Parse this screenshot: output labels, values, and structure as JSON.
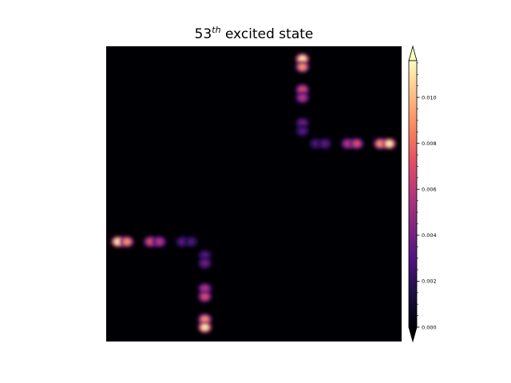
{
  "chart_data": {
    "type": "heatmap",
    "title": {
      "prefix": "53",
      "superscript": "th",
      "suffix": " excited state"
    },
    "xlabel": "",
    "ylabel": "",
    "colormap": "magma",
    "axes_visible": false,
    "grid": false,
    "colorbar": {
      "position": "right",
      "extend": "both",
      "range": [
        0.0,
        0.0116
      ],
      "ticks": [
        0.0,
        0.002,
        0.004,
        0.006,
        0.008,
        0.01
      ],
      "tick_labels": [
        "0.000",
        "0.002",
        "0.004",
        "0.006",
        "0.008",
        "0.010"
      ]
    },
    "extent": {
      "x": [
        0,
        1
      ],
      "y": [
        0,
        1
      ]
    },
    "blobs": [
      {
        "x": 0.664,
        "y": 0.957,
        "value": 0.0112
      },
      {
        "x": 0.664,
        "y": 0.93,
        "value": 0.009
      },
      {
        "x": 0.664,
        "y": 0.853,
        "value": 0.007
      },
      {
        "x": 0.664,
        "y": 0.826,
        "value": 0.0058
      },
      {
        "x": 0.664,
        "y": 0.74,
        "value": 0.0038
      },
      {
        "x": 0.664,
        "y": 0.713,
        "value": 0.003
      },
      {
        "x": 0.71,
        "y": 0.67,
        "value": 0.0028
      },
      {
        "x": 0.74,
        "y": 0.67,
        "value": 0.0033
      },
      {
        "x": 0.818,
        "y": 0.67,
        "value": 0.0058
      },
      {
        "x": 0.848,
        "y": 0.67,
        "value": 0.007
      },
      {
        "x": 0.928,
        "y": 0.67,
        "value": 0.009
      },
      {
        "x": 0.958,
        "y": 0.67,
        "value": 0.0112
      },
      {
        "x": 0.04,
        "y": 0.338,
        "value": 0.0112
      },
      {
        "x": 0.07,
        "y": 0.338,
        "value": 0.009
      },
      {
        "x": 0.15,
        "y": 0.338,
        "value": 0.007
      },
      {
        "x": 0.18,
        "y": 0.338,
        "value": 0.0058
      },
      {
        "x": 0.258,
        "y": 0.338,
        "value": 0.0033
      },
      {
        "x": 0.288,
        "y": 0.338,
        "value": 0.0028
      },
      {
        "x": 0.334,
        "y": 0.292,
        "value": 0.003
      },
      {
        "x": 0.334,
        "y": 0.265,
        "value": 0.0038
      },
      {
        "x": 0.334,
        "y": 0.179,
        "value": 0.0058
      },
      {
        "x": 0.334,
        "y": 0.152,
        "value": 0.007
      },
      {
        "x": 0.334,
        "y": 0.075,
        "value": 0.009
      },
      {
        "x": 0.334,
        "y": 0.048,
        "value": 0.0112
      }
    ]
  }
}
